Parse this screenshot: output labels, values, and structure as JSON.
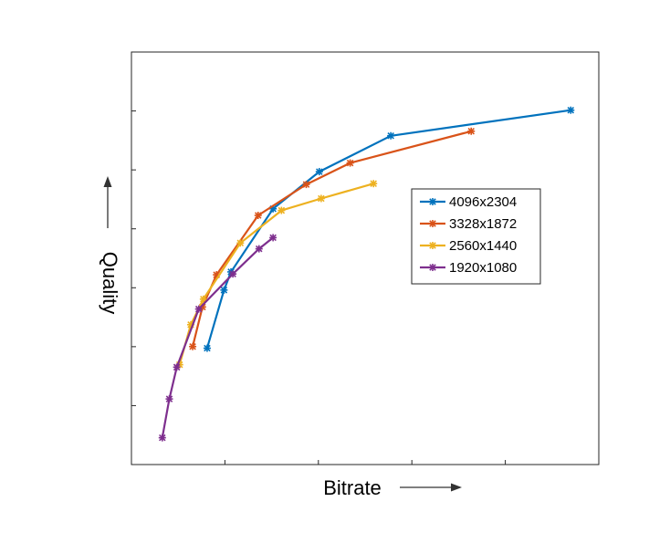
{
  "chart_data": {
    "type": "line",
    "title": "",
    "xlabel": "Bitrate",
    "ylabel": "Quality",
    "x_tick_labels": [],
    "y_tick_labels": [],
    "xlim": [
      0,
      100
    ],
    "ylim": [
      0,
      100
    ],
    "grid": false,
    "legend_position": "right",
    "series": [
      {
        "name": "4096x2304",
        "color": "#0072BD",
        "x": [
          16.2,
          19.8,
          21.3,
          30.3,
          40.2,
          55.5,
          94.0
        ],
        "y": [
          28.2,
          42.3,
          46.7,
          62.0,
          71.0,
          79.7,
          85.9
        ]
      },
      {
        "name": "3328x1872",
        "color": "#D95319",
        "x": [
          13.1,
          15.2,
          18.2,
          27.1,
          37.4,
          46.8,
          72.7
        ],
        "y": [
          28.6,
          38.2,
          46.0,
          60.4,
          67.9,
          73.1,
          80.8
        ]
      },
      {
        "name": "2560x1440",
        "color": "#EDB120",
        "x": [
          10.3,
          12.7,
          15.4,
          23.3,
          32.1,
          40.6,
          51.8
        ],
        "y": [
          24.2,
          33.9,
          40.1,
          53.7,
          61.6,
          64.5,
          68.1
        ]
      },
      {
        "name": "1920x1080",
        "color": "#7E2F8E",
        "x": [
          6.6,
          8.1,
          9.7,
          14.4,
          21.7,
          27.3,
          30.3
        ],
        "y": [
          6.5,
          15.9,
          23.6,
          37.7,
          46.2,
          52.3,
          55.0
        ]
      }
    ]
  }
}
